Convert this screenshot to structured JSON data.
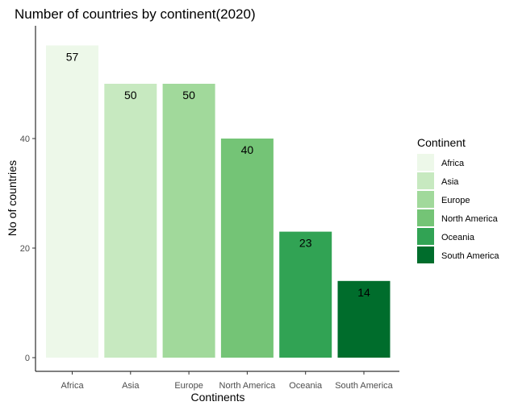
{
  "chart_data": {
    "type": "bar",
    "title": "Number of countries by continent(2020)",
    "xlabel": "Continents",
    "ylabel": "No of countries",
    "categories": [
      "Africa",
      "Asia",
      "Europe",
      "North America",
      "Oceania",
      "South America"
    ],
    "values": [
      57,
      50,
      50,
      40,
      23,
      14
    ],
    "ylim": [
      0,
      57
    ],
    "yticks": [
      0,
      20,
      40
    ],
    "grid": false,
    "legend": {
      "title": "Continent",
      "placement": "right",
      "entries": [
        "Africa",
        "Asia",
        "Europe",
        "North America",
        "Oceania",
        "South America"
      ]
    },
    "colors": [
      "#edf8e9",
      "#c7e9c0",
      "#a1d99b",
      "#74c476",
      "#31a354",
      "#006d2c"
    ]
  }
}
